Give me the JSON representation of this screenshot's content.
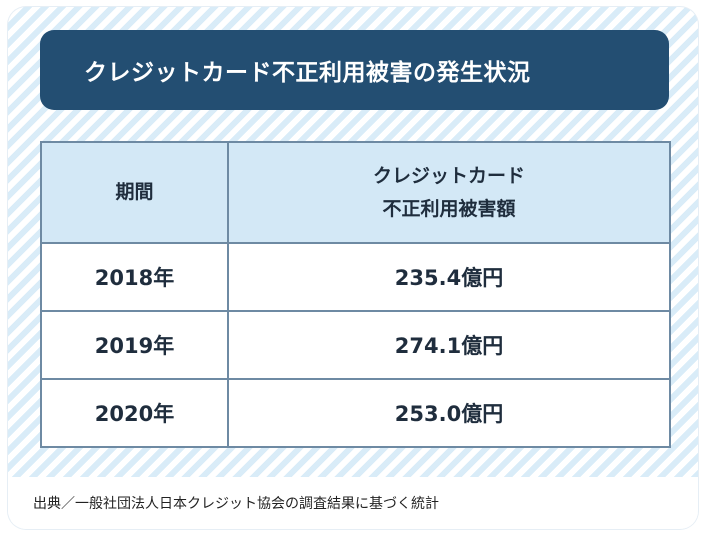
{
  "title": "クレジットカード不正利用被害の発生状況",
  "table": {
    "header": {
      "period": "期間",
      "amount_line1": "クレジットカード",
      "amount_line2": "不正利用被害額"
    },
    "rows": [
      {
        "period": "2018年",
        "amount": "235.4億円"
      },
      {
        "period": "2019年",
        "amount": "274.1億円"
      },
      {
        "period": "2020年",
        "amount": "253.0億円"
      }
    ]
  },
  "source": "出典／一般社団法人日本クレジット協会の調査結果に基づく統計",
  "colors": {
    "title_bg": "#234e72",
    "header_bg": "#d3e8f6",
    "stripe": "#d9ecf8",
    "border": "#6e8aa3"
  }
}
